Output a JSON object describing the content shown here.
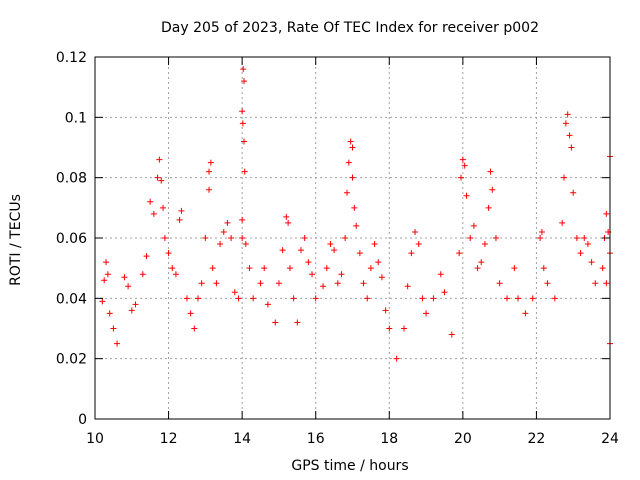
{
  "chart_data": {
    "type": "scatter",
    "title": "Day 205 of 2023, Rate Of TEC Index for receiver p002",
    "xlabel": "GPS time / hours",
    "ylabel": "ROTI / TECUs",
    "xlim": [
      10,
      24
    ],
    "ylim": [
      0,
      0.12
    ],
    "x_ticks": [
      10,
      12,
      14,
      16,
      18,
      20,
      22,
      24
    ],
    "y_ticks": [
      0,
      0.02,
      0.04,
      0.06,
      0.08,
      0.1,
      0.12
    ],
    "x_tick_labels": [
      "10",
      "12",
      "14",
      "16",
      "18",
      "20",
      "22",
      "24"
    ],
    "y_tick_labels": [
      "0",
      "0.02",
      "0.04",
      "0.06",
      "0.08",
      "0.1",
      "0.12"
    ],
    "grid": true,
    "marker": "+",
    "marker_color": "#ff0000",
    "series": [
      {
        "name": "ROTI",
        "points": [
          [
            10.2,
            0.039
          ],
          [
            10.25,
            0.046
          ],
          [
            10.3,
            0.052
          ],
          [
            10.35,
            0.048
          ],
          [
            10.4,
            0.035
          ],
          [
            10.5,
            0.03
          ],
          [
            10.6,
            0.025
          ],
          [
            10.8,
            0.047
          ],
          [
            10.9,
            0.044
          ],
          [
            11.0,
            0.036
          ],
          [
            11.1,
            0.038
          ],
          [
            11.3,
            0.048
          ],
          [
            11.4,
            0.054
          ],
          [
            11.5,
            0.072
          ],
          [
            11.6,
            0.068
          ],
          [
            11.7,
            0.08
          ],
          [
            11.75,
            0.086
          ],
          [
            11.8,
            0.079
          ],
          [
            11.85,
            0.07
          ],
          [
            11.9,
            0.06
          ],
          [
            12.0,
            0.055
          ],
          [
            12.1,
            0.05
          ],
          [
            12.2,
            0.048
          ],
          [
            12.3,
            0.066
          ],
          [
            12.35,
            0.069
          ],
          [
            12.5,
            0.04
          ],
          [
            12.6,
            0.035
          ],
          [
            12.7,
            0.03
          ],
          [
            12.8,
            0.04
          ],
          [
            12.9,
            0.045
          ],
          [
            13.0,
            0.06
          ],
          [
            13.1,
            0.082
          ],
          [
            13.15,
            0.085
          ],
          [
            13.1,
            0.076
          ],
          [
            13.2,
            0.05
          ],
          [
            13.3,
            0.045
          ],
          [
            13.4,
            0.058
          ],
          [
            13.5,
            0.062
          ],
          [
            13.6,
            0.065
          ],
          [
            13.7,
            0.06
          ],
          [
            13.8,
            0.042
          ],
          [
            13.9,
            0.04
          ],
          [
            14.0,
            0.06
          ],
          [
            14.03,
            0.116
          ],
          [
            14.05,
            0.112
          ],
          [
            14.0,
            0.102
          ],
          [
            14.02,
            0.098
          ],
          [
            14.05,
            0.092
          ],
          [
            14.07,
            0.082
          ],
          [
            14.0,
            0.066
          ],
          [
            14.1,
            0.058
          ],
          [
            14.2,
            0.05
          ],
          [
            14.3,
            0.04
          ],
          [
            14.5,
            0.045
          ],
          [
            14.6,
            0.05
          ],
          [
            14.7,
            0.038
          ],
          [
            14.9,
            0.032
          ],
          [
            15.0,
            0.045
          ],
          [
            15.1,
            0.056
          ],
          [
            15.2,
            0.067
          ],
          [
            15.25,
            0.065
          ],
          [
            15.3,
            0.05
          ],
          [
            15.4,
            0.04
          ],
          [
            15.5,
            0.032
          ],
          [
            15.6,
            0.056
          ],
          [
            15.7,
            0.06
          ],
          [
            15.8,
            0.052
          ],
          [
            15.9,
            0.048
          ],
          [
            16.0,
            0.04
          ],
          [
            16.2,
            0.044
          ],
          [
            16.3,
            0.05
          ],
          [
            16.4,
            0.058
          ],
          [
            16.5,
            0.056
          ],
          [
            16.6,
            0.045
          ],
          [
            16.7,
            0.048
          ],
          [
            16.8,
            0.06
          ],
          [
            16.85,
            0.075
          ],
          [
            16.9,
            0.085
          ],
          [
            16.95,
            0.092
          ],
          [
            17.0,
            0.09
          ],
          [
            17.0,
            0.08
          ],
          [
            17.05,
            0.07
          ],
          [
            17.1,
            0.064
          ],
          [
            17.2,
            0.055
          ],
          [
            17.3,
            0.045
          ],
          [
            17.4,
            0.04
          ],
          [
            17.5,
            0.05
          ],
          [
            17.6,
            0.058
          ],
          [
            17.7,
            0.052
          ],
          [
            17.8,
            0.047
          ],
          [
            17.9,
            0.036
          ],
          [
            18.0,
            0.03
          ],
          [
            18.2,
            0.02
          ],
          [
            18.4,
            0.03
          ],
          [
            18.5,
            0.044
          ],
          [
            18.6,
            0.055
          ],
          [
            18.7,
            0.062
          ],
          [
            18.8,
            0.058
          ],
          [
            18.9,
            0.04
          ],
          [
            19.0,
            0.035
          ],
          [
            19.2,
            0.04
          ],
          [
            19.4,
            0.048
          ],
          [
            19.5,
            0.042
          ],
          [
            19.7,
            0.028
          ],
          [
            19.9,
            0.055
          ],
          [
            19.95,
            0.08
          ],
          [
            20.0,
            0.086
          ],
          [
            20.05,
            0.084
          ],
          [
            20.1,
            0.074
          ],
          [
            20.2,
            0.06
          ],
          [
            20.3,
            0.064
          ],
          [
            20.4,
            0.05
          ],
          [
            20.5,
            0.052
          ],
          [
            20.6,
            0.058
          ],
          [
            20.7,
            0.07
          ],
          [
            20.75,
            0.082
          ],
          [
            20.8,
            0.076
          ],
          [
            20.9,
            0.06
          ],
          [
            21.0,
            0.045
          ],
          [
            21.2,
            0.04
          ],
          [
            21.4,
            0.05
          ],
          [
            21.5,
            0.04
          ],
          [
            21.7,
            0.035
          ],
          [
            21.9,
            0.04
          ],
          [
            22.1,
            0.06
          ],
          [
            22.15,
            0.062
          ],
          [
            22.2,
            0.05
          ],
          [
            22.3,
            0.045
          ],
          [
            22.5,
            0.04
          ],
          [
            22.7,
            0.065
          ],
          [
            22.75,
            0.08
          ],
          [
            22.8,
            0.098
          ],
          [
            22.85,
            0.101
          ],
          [
            22.9,
            0.094
          ],
          [
            22.95,
            0.09
          ],
          [
            23.0,
            0.075
          ],
          [
            23.1,
            0.06
          ],
          [
            23.2,
            0.055
          ],
          [
            23.3,
            0.06
          ],
          [
            23.4,
            0.058
          ],
          [
            23.5,
            0.052
          ],
          [
            23.6,
            0.045
          ],
          [
            23.8,
            0.05
          ],
          [
            23.85,
            0.06
          ],
          [
            23.9,
            0.068
          ],
          [
            23.95,
            0.062
          ],
          [
            24.0,
            0.087
          ],
          [
            24.0,
            0.055
          ],
          [
            23.9,
            0.045
          ],
          [
            24.0,
            0.025
          ]
        ]
      }
    ]
  }
}
